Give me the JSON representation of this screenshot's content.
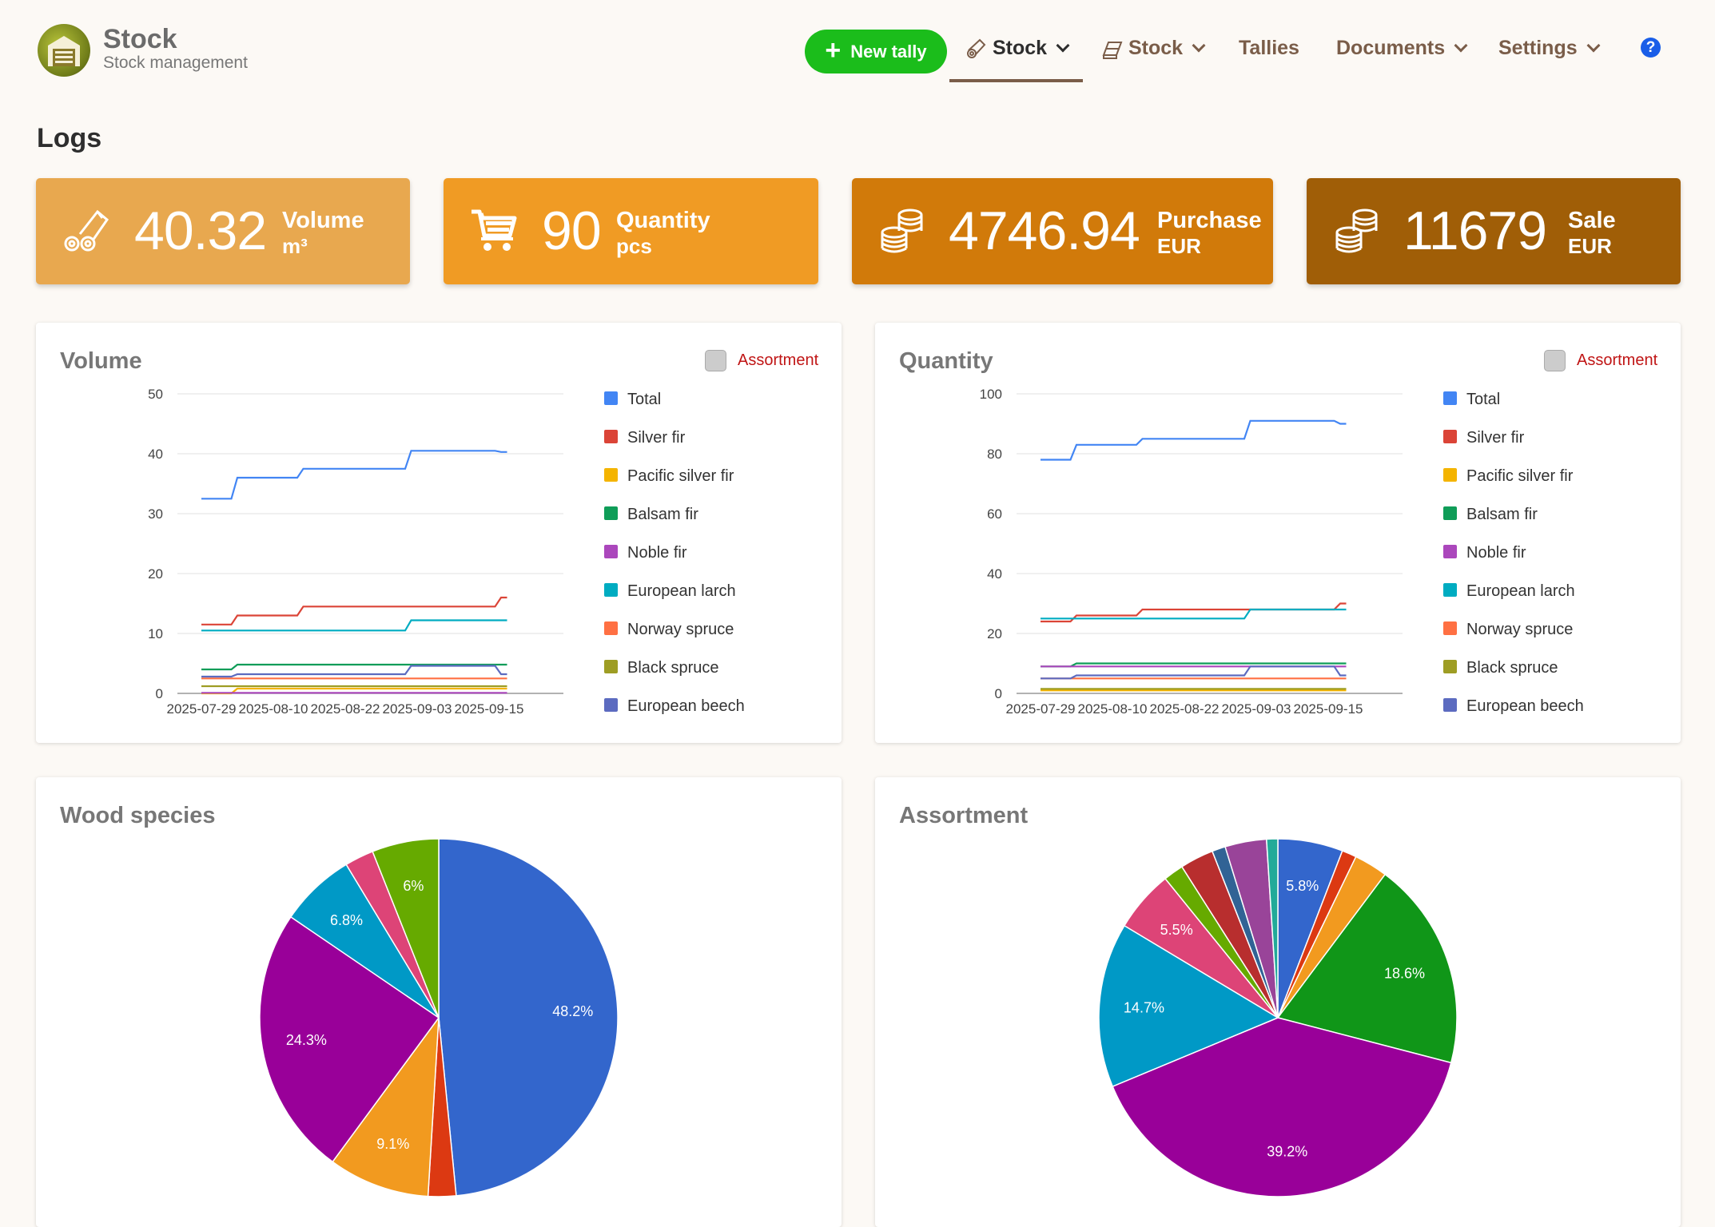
{
  "header": {
    "brand_title": "Stock",
    "brand_subtitle": "Stock management",
    "new_tally": "New tally",
    "nav": [
      {
        "label": "Stock",
        "icon": "logs-icon",
        "active": true
      },
      {
        "label": "Stock",
        "icon": "lumber-icon",
        "active": false
      },
      {
        "label": "Tallies"
      },
      {
        "label": "Documents"
      },
      {
        "label": "Settings"
      }
    ],
    "help": "?"
  },
  "page_title": "Logs",
  "stats": [
    {
      "value": "40.32",
      "label": "Volume",
      "unit": "m³",
      "icon": "logs-icon",
      "color": "#e8a84f"
    },
    {
      "value": "90",
      "label": "Quantity",
      "unit": "pcs",
      "icon": "cart-icon",
      "color": "#f09b24"
    },
    {
      "value": "4746.94",
      "label": "Purchase",
      "unit": "EUR",
      "icon": "coins-icon",
      "color": "#d17a0a"
    },
    {
      "value": "11679",
      "label": "Sale",
      "unit": "EUR",
      "icon": "coins-icon",
      "color": "#a05e07"
    }
  ],
  "volume_panel": {
    "title": "Volume",
    "toggle_label": "Assortment"
  },
  "quantity_panel": {
    "title": "Quantity",
    "toggle_label": "Assortment"
  },
  "species_panel": {
    "title": "Wood species"
  },
  "assortment_panel": {
    "title": "Assortment"
  },
  "chart_data": [
    {
      "type": "line",
      "ylim": [
        0,
        50
      ],
      "yticks": [
        0,
        10,
        20,
        30,
        40,
        50
      ],
      "xticks": [
        "2025-07-29",
        "2025-08-10",
        "2025-08-22",
        "2025-09-03",
        "2025-09-15"
      ],
      "x": [
        "2025-07-29",
        "2025-08-03",
        "2025-08-04",
        "2025-08-14",
        "2025-08-15",
        "2025-09-01",
        "2025-09-02",
        "2025-09-16",
        "2025-09-17",
        "2025-09-18"
      ],
      "series": [
        {
          "name": "Total",
          "color": "#4285f4",
          "values": [
            32.5,
            32.5,
            36,
            36,
            37.5,
            37.5,
            40.5,
            40.5,
            40.3,
            40.3
          ]
        },
        {
          "name": "Silver fir",
          "color": "#db4437",
          "values": [
            11.5,
            11.5,
            13,
            13,
            14.5,
            14.5,
            14.5,
            14.5,
            16,
            16
          ]
        },
        {
          "name": "Pacific silver fir",
          "color": "#f4b400",
          "values": [
            0,
            0,
            0.8,
            0.8,
            0.8,
            0.8,
            0.8,
            0.8,
            0.8,
            0.8
          ]
        },
        {
          "name": "Balsam fir",
          "color": "#0f9d58",
          "values": [
            4,
            4,
            4.8,
            4.8,
            4.8,
            4.8,
            4.8,
            4.8,
            4.8,
            4.8
          ]
        },
        {
          "name": "Noble fir",
          "color": "#ab47bc",
          "values": [
            0.1,
            0.1,
            0.1,
            0.1,
            0.1,
            0.1,
            0.1,
            0.1,
            0.1,
            0.1
          ]
        },
        {
          "name": "European larch",
          "color": "#00acc1",
          "values": [
            10.5,
            10.5,
            10.5,
            10.5,
            10.5,
            10.5,
            12.2,
            12.2,
            12.2,
            12.2
          ]
        },
        {
          "name": "Norway spruce",
          "color": "#ff7043",
          "values": [
            2.5,
            2.5,
            2.5,
            2.5,
            2.5,
            2.5,
            2.5,
            2.5,
            2.5,
            2.5
          ]
        },
        {
          "name": "Black spruce",
          "color": "#9e9d24",
          "values": [
            1.2,
            1.2,
            1.2,
            1.2,
            1.2,
            1.2,
            1.2,
            1.2,
            1.2,
            1.2
          ]
        },
        {
          "name": "European beech",
          "color": "#5c6bc0",
          "values": [
            2.8,
            2.8,
            3.2,
            3.2,
            3.2,
            3.2,
            4.6,
            4.6,
            3.2,
            3.2
          ]
        }
      ]
    },
    {
      "type": "line",
      "ylim": [
        0,
        100
      ],
      "yticks": [
        0,
        20,
        40,
        60,
        80,
        100
      ],
      "xticks": [
        "2025-07-29",
        "2025-08-10",
        "2025-08-22",
        "2025-09-03",
        "2025-09-15"
      ],
      "x": [
        "2025-07-29",
        "2025-08-03",
        "2025-08-04",
        "2025-08-14",
        "2025-08-15",
        "2025-09-01",
        "2025-09-02",
        "2025-09-16",
        "2025-09-17",
        "2025-09-18"
      ],
      "series": [
        {
          "name": "Total",
          "color": "#4285f4",
          "values": [
            78,
            78,
            83,
            83,
            85,
            85,
            91,
            91,
            90,
            90
          ]
        },
        {
          "name": "Silver fir",
          "color": "#db4437",
          "values": [
            24,
            24,
            26,
            26,
            28,
            28,
            28,
            28,
            30,
            30
          ]
        },
        {
          "name": "Pacific silver fir",
          "color": "#f4b400",
          "values": [
            1,
            1,
            1,
            1,
            1,
            1,
            1,
            1,
            1,
            1
          ]
        },
        {
          "name": "Balsam fir",
          "color": "#0f9d58",
          "values": [
            9,
            9,
            10,
            10,
            10,
            10,
            10,
            10,
            10,
            10
          ]
        },
        {
          "name": "Noble fir",
          "color": "#ab47bc",
          "values": [
            9,
            9,
            9,
            9,
            9,
            9,
            9,
            9,
            9,
            9
          ]
        },
        {
          "name": "European larch",
          "color": "#00acc1",
          "values": [
            25,
            25,
            25,
            25,
            25,
            25,
            28,
            28,
            28,
            28
          ]
        },
        {
          "name": "Norway spruce",
          "color": "#ff7043",
          "values": [
            5,
            5,
            5,
            5,
            5,
            5,
            5,
            5,
            5,
            5
          ]
        },
        {
          "name": "Black spruce",
          "color": "#9e9d24",
          "values": [
            1.5,
            1.5,
            1.5,
            1.5,
            1.5,
            1.5,
            1.5,
            1.5,
            1.5,
            1.5
          ]
        },
        {
          "name": "European beech",
          "color": "#5c6bc0",
          "values": [
            5,
            5,
            6,
            6,
            6,
            6,
            9,
            9,
            6,
            6
          ]
        }
      ]
    },
    {
      "type": "pie",
      "slices": [
        {
          "value": 48.2,
          "label": "48.2%",
          "color": "#3366cc"
        },
        {
          "value": 2.5,
          "label": "",
          "color": "#dc3912"
        },
        {
          "value": 9.1,
          "label": "9.1%",
          "color": "#f29a1f"
        },
        {
          "value": 24.3,
          "label": "24.3%",
          "color": "#990099"
        },
        {
          "value": 6.8,
          "label": "6.8%",
          "color": "#0099c6"
        },
        {
          "value": 2.6,
          "label": "",
          "color": "#dd4477"
        },
        {
          "value": 6.0,
          "label": "6%",
          "color": "#66aa00"
        }
      ]
    },
    {
      "type": "pie",
      "slices": [
        {
          "value": 5.8,
          "label": "5.8%",
          "color": "#3366cc"
        },
        {
          "value": 1.3,
          "label": "",
          "color": "#dc3912"
        },
        {
          "value": 3.0,
          "label": "",
          "color": "#f29a1f"
        },
        {
          "value": 18.6,
          "label": "18.6%",
          "color": "#109618"
        },
        {
          "value": 39.2,
          "label": "39.2%",
          "color": "#990099"
        },
        {
          "value": 14.7,
          "label": "14.7%",
          "color": "#0099c6"
        },
        {
          "value": 5.5,
          "label": "5.5%",
          "color": "#dd4477"
        },
        {
          "value": 1.8,
          "label": "",
          "color": "#66aa00"
        },
        {
          "value": 3.0,
          "label": "",
          "color": "#b82e2e"
        },
        {
          "value": 1.2,
          "label": "",
          "color": "#316395"
        },
        {
          "value": 3.7,
          "label": "",
          "color": "#994499"
        },
        {
          "value": 1.0,
          "label": "",
          "color": "#22aa99"
        }
      ]
    }
  ]
}
